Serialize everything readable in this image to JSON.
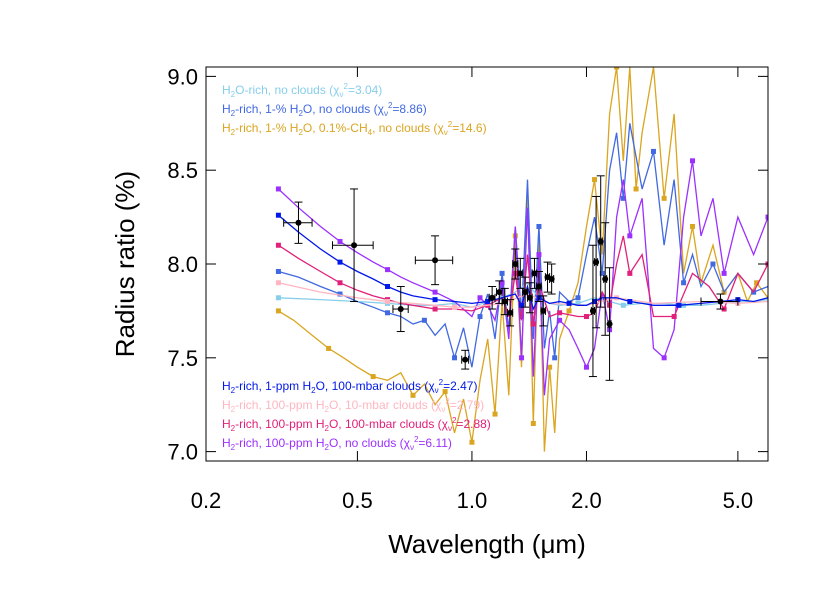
{
  "chart_data": {
    "type": "line",
    "xlabel": "Wavelength (μm)",
    "ylabel": "Radius ratio (%)",
    "xscale": "log",
    "xlim": [
      0.2,
      6.0
    ],
    "ylim": [
      6.95,
      9.05
    ],
    "xticks": [
      {
        "value": 0.2,
        "label": "0.2"
      },
      {
        "value": 0.5,
        "label": "0.5"
      },
      {
        "value": 1.0,
        "label": "1.0"
      },
      {
        "value": 2.0,
        "label": "2.0"
      },
      {
        "value": 5.0,
        "label": "5.0"
      }
    ],
    "yticks": [
      {
        "value": 7.0,
        "label": "7.0"
      },
      {
        "value": 7.5,
        "label": "7.5"
      },
      {
        "value": 8.0,
        "label": "8.0"
      },
      {
        "value": 8.5,
        "label": "8.5"
      },
      {
        "value": 9.0,
        "label": "9.0"
      }
    ],
    "grid": false,
    "series": [
      {
        "name": "H2-rich, 1-% H2O, 0.1%-CH4, no clouds",
        "legend": {
          "pre": "H",
          "sub1": "2",
          "mid": "-rich, 1-% H",
          "sub2": "2",
          "mid2": "O, 0.1%-CH",
          "sub3": "4",
          "post": ", no clouds (",
          "chi": "χ",
          "nu": "ν",
          "sup": "2",
          "val": "=14.6)"
        },
        "color": "#DAA520",
        "legend_pos": "top",
        "x": [
          0.31,
          0.34,
          0.38,
          0.42,
          0.46,
          0.5,
          0.55,
          0.6,
          0.65,
          0.7,
          0.75,
          0.8,
          0.85,
          0.9,
          0.95,
          1.0,
          1.05,
          1.1,
          1.15,
          1.2,
          1.25,
          1.3,
          1.35,
          1.4,
          1.45,
          1.5,
          1.55,
          1.6,
          1.65,
          1.7,
          1.8,
          1.9,
          2.0,
          2.1,
          2.2,
          2.3,
          2.4,
          2.5,
          2.6,
          2.7,
          2.8,
          3.0,
          3.2,
          3.4,
          3.6,
          3.8,
          4.0,
          4.3,
          4.6,
          5.0,
          5.3,
          5.6,
          6.0
        ],
        "y": [
          7.75,
          7.7,
          7.62,
          7.55,
          7.5,
          7.45,
          7.4,
          7.38,
          7.42,
          7.3,
          7.36,
          7.25,
          7.32,
          7.1,
          7.28,
          7.05,
          7.38,
          7.6,
          7.2,
          7.8,
          7.3,
          8.15,
          7.45,
          8.4,
          7.15,
          8.2,
          7.0,
          7.45,
          7.1,
          7.6,
          7.75,
          7.9,
          8.2,
          8.45,
          8.05,
          8.8,
          9.05,
          8.55,
          9.05,
          8.4,
          8.7,
          9.05,
          8.35,
          8.8,
          7.95,
          8.2,
          7.9,
          8.1,
          7.85,
          7.95,
          7.8,
          7.9,
          7.82
        ]
      },
      {
        "name": "H2-rich, 1-% H2O, no clouds",
        "legend": {
          "pre": "H",
          "sub1": "2",
          "mid": "-rich, 1-% H",
          "sub2": "2",
          "mid2": "O, no clouds (",
          "sub3": "",
          "post": "",
          "chi": "χ",
          "nu": "ν",
          "sup": "2",
          "val": "=8.86)"
        },
        "color": "#4169E1",
        "legend_pos": "top",
        "x": [
          0.31,
          0.35,
          0.4,
          0.45,
          0.5,
          0.55,
          0.6,
          0.65,
          0.7,
          0.75,
          0.8,
          0.85,
          0.9,
          0.95,
          1.0,
          1.05,
          1.1,
          1.15,
          1.2,
          1.25,
          1.3,
          1.35,
          1.4,
          1.45,
          1.5,
          1.55,
          1.6,
          1.65,
          1.7,
          1.8,
          1.9,
          2.0,
          2.1,
          2.2,
          2.3,
          2.4,
          2.5,
          2.6,
          2.8,
          3.0,
          3.2,
          3.4,
          3.6,
          3.8,
          4.0,
          4.3,
          4.6,
          5.0,
          5.5,
          6.0
        ],
        "y": [
          7.96,
          7.93,
          7.88,
          7.84,
          7.8,
          7.77,
          7.74,
          7.72,
          7.68,
          7.7,
          7.62,
          7.68,
          7.5,
          7.66,
          7.45,
          7.72,
          7.84,
          7.6,
          7.95,
          7.65,
          8.2,
          7.72,
          8.45,
          7.6,
          8.2,
          7.55,
          7.75,
          7.5,
          7.85,
          7.8,
          7.82,
          8.05,
          8.25,
          7.95,
          8.5,
          8.7,
          8.35,
          8.75,
          8.4,
          8.6,
          8.1,
          8.45,
          7.9,
          8.05,
          7.88,
          8.0,
          7.85,
          7.95,
          7.85,
          7.88
        ]
      },
      {
        "name": "H2O-rich, no clouds",
        "legend": {
          "pre": "H",
          "sub1": "2",
          "mid": "O-rich, no clouds (",
          "sub2": "",
          "mid2": "",
          "sub3": "",
          "post": "",
          "chi": "χ",
          "nu": "ν",
          "sup": "2",
          "val": "=3.04)"
        },
        "color": "#87CEEB",
        "legend_pos": "top",
        "x": [
          0.31,
          0.4,
          0.5,
          0.6,
          0.7,
          0.8,
          0.9,
          1.0,
          1.1,
          1.2,
          1.3,
          1.4,
          1.5,
          1.6,
          1.7,
          1.9,
          2.1,
          2.3,
          2.5,
          2.8,
          3.2,
          3.6,
          4.0,
          4.5,
          5.0,
          5.5,
          6.0
        ],
        "y": [
          7.82,
          7.81,
          7.8,
          7.79,
          7.78,
          7.78,
          7.79,
          7.77,
          7.8,
          7.82,
          7.85,
          7.9,
          7.82,
          7.79,
          7.78,
          7.79,
          7.82,
          7.8,
          7.78,
          7.79,
          7.79,
          7.78,
          7.78,
          7.79,
          7.8,
          7.8,
          7.81
        ]
      },
      {
        "name": "H2-rich, 100-ppm H2O, no clouds",
        "legend": {
          "pre": "H",
          "sub1": "2",
          "mid": "-rich, 100-ppm H",
          "sub2": "2",
          "mid2": "O, no clouds (",
          "sub3": "",
          "post": "",
          "chi": "χ",
          "nu": "ν",
          "sup": "2",
          "val": "=6.11)"
        },
        "color": "#9B30FF",
        "legend_pos": "bottom",
        "x": [
          0.31,
          0.35,
          0.4,
          0.45,
          0.5,
          0.55,
          0.6,
          0.65,
          0.7,
          0.8,
          0.9,
          1.0,
          1.05,
          1.1,
          1.15,
          1.2,
          1.25,
          1.3,
          1.35,
          1.4,
          1.45,
          1.5,
          1.55,
          1.6,
          1.7,
          1.8,
          1.9,
          2.0,
          2.1,
          2.2,
          2.3,
          2.4,
          2.5,
          2.6,
          2.8,
          3.0,
          3.2,
          3.4,
          3.6,
          3.8,
          4.0,
          4.3,
          4.6,
          5.0,
          5.5,
          6.0
        ],
        "y": [
          8.4,
          8.3,
          8.2,
          8.12,
          8.06,
          8.01,
          7.97,
          7.93,
          7.9,
          7.85,
          7.8,
          7.72,
          7.82,
          7.78,
          7.7,
          7.9,
          7.6,
          8.2,
          7.5,
          8.3,
          7.4,
          8.05,
          7.3,
          7.6,
          7.7,
          7.65,
          7.55,
          7.45,
          7.55,
          7.85,
          7.65,
          8.25,
          8.45,
          8.15,
          8.35,
          7.55,
          7.5,
          7.65,
          8.25,
          8.55,
          8.15,
          8.35,
          7.95,
          8.25,
          8.05,
          8.25
        ]
      },
      {
        "name": "H2-rich, 100-ppm H2O, 100-mbar clouds",
        "legend": {
          "pre": "H",
          "sub1": "2",
          "mid": "-rich, 100-ppm H",
          "sub2": "2",
          "mid2": "O, 100-mbar clouds (",
          "sub3": "",
          "post": "",
          "chi": "χ",
          "nu": "ν",
          "sup": "2",
          "val": "=2.88)"
        },
        "color": "#E0207A",
        "legend_pos": "bottom",
        "x": [
          0.31,
          0.35,
          0.4,
          0.45,
          0.5,
          0.55,
          0.6,
          0.65,
          0.7,
          0.8,
          0.9,
          1.0,
          1.1,
          1.2,
          1.25,
          1.3,
          1.35,
          1.4,
          1.45,
          1.5,
          1.6,
          1.7,
          1.8,
          1.9,
          2.0,
          2.1,
          2.2,
          2.3,
          2.4,
          2.5,
          2.6,
          2.8,
          3.0,
          3.4,
          3.8,
          4.2,
          4.6,
          5.0,
          5.5,
          6.0
        ],
        "y": [
          8.1,
          8.03,
          7.96,
          7.9,
          7.86,
          7.83,
          7.81,
          7.79,
          7.78,
          7.76,
          7.76,
          7.75,
          7.78,
          7.82,
          7.72,
          7.95,
          7.7,
          8.05,
          7.68,
          7.9,
          7.72,
          7.74,
          7.73,
          7.72,
          7.72,
          7.74,
          7.85,
          7.78,
          8.0,
          8.15,
          7.95,
          8.05,
          7.72,
          7.72,
          7.95,
          7.88,
          7.76,
          7.95,
          7.85,
          8.0
        ]
      },
      {
        "name": "H2-rich, 100-ppm H2O, 10-mbar clouds",
        "legend": {
          "pre": "H",
          "sub1": "2",
          "mid": "-rich, 100-ppm H",
          "sub2": "2",
          "mid2": "O, 10-mbar clouds (",
          "sub3": "",
          "post": "",
          "chi": "χ",
          "nu": "ν",
          "sup": "2",
          "val": "=2.79)"
        },
        "color": "#FFB6C1",
        "legend_pos": "bottom",
        "x": [
          0.31,
          0.4,
          0.5,
          0.6,
          0.7,
          0.8,
          0.9,
          1.0,
          1.2,
          1.4,
          1.6,
          2.0,
          2.4,
          3.0,
          4.0,
          5.0,
          6.0
        ],
        "y": [
          7.9,
          7.85,
          7.82,
          7.8,
          7.79,
          7.78,
          7.77,
          7.77,
          7.79,
          7.84,
          7.79,
          7.78,
          7.82,
          7.79,
          7.8,
          7.79,
          7.8
        ]
      },
      {
        "name": "H2-rich, 1-ppm H2O, 100-mbar clouds",
        "legend": {
          "pre": "H",
          "sub1": "2",
          "mid": "-rich, 1-ppm H",
          "sub2": "2",
          "mid2": "O, 100-mbar clouds (",
          "sub3": "",
          "post": "",
          "chi": "χ",
          "nu": "ν",
          "sup": "2",
          "val": "=2.47)"
        },
        "color": "#0018E8",
        "legend_pos": "bottom",
        "x": [
          0.31,
          0.35,
          0.4,
          0.45,
          0.5,
          0.55,
          0.6,
          0.65,
          0.7,
          0.8,
          0.9,
          1.0,
          1.1,
          1.2,
          1.3,
          1.35,
          1.4,
          1.45,
          1.5,
          1.6,
          1.7,
          1.8,
          1.9,
          2.0,
          2.1,
          2.2,
          2.4,
          2.6,
          2.8,
          3.0,
          3.5,
          4.0,
          4.5,
          5.0,
          5.5,
          6.0
        ],
        "y": [
          8.26,
          8.17,
          8.08,
          8.01,
          7.96,
          7.92,
          7.88,
          7.85,
          7.83,
          7.81,
          7.8,
          7.79,
          7.8,
          7.82,
          7.84,
          7.78,
          7.88,
          7.76,
          7.82,
          7.79,
          7.8,
          7.79,
          7.78,
          7.78,
          7.8,
          7.82,
          7.82,
          7.8,
          7.79,
          7.78,
          7.78,
          7.79,
          7.8,
          7.81,
          7.8,
          7.82
        ]
      }
    ],
    "observations": {
      "color": "#000000",
      "points": [
        {
          "x": 0.35,
          "y": 8.22,
          "xerr": 0.03,
          "yerr": 0.11
        },
        {
          "x": 0.49,
          "y": 8.1,
          "xerr": 0.06,
          "yerr": 0.3
        },
        {
          "x": 0.65,
          "y": 7.76,
          "xerr": 0.03,
          "yerr": 0.12
        },
        {
          "x": 0.8,
          "y": 8.02,
          "xerr": 0.09,
          "yerr": 0.13
        },
        {
          "x": 0.96,
          "y": 7.49,
          "xerr": 0.02,
          "yerr": 0.05
        },
        {
          "x": 1.13,
          "y": 7.82,
          "xerr": 0.02,
          "yerr": 0.06
        },
        {
          "x": 1.18,
          "y": 7.85,
          "xerr": 0.02,
          "yerr": 0.06
        },
        {
          "x": 1.22,
          "y": 7.8,
          "xerr": 0.02,
          "yerr": 0.07
        },
        {
          "x": 1.26,
          "y": 7.74,
          "xerr": 0.02,
          "yerr": 0.07
        },
        {
          "x": 1.3,
          "y": 8.0,
          "xerr": 0.02,
          "yerr": 0.08
        },
        {
          "x": 1.34,
          "y": 7.95,
          "xerr": 0.02,
          "yerr": 0.08
        },
        {
          "x": 1.38,
          "y": 7.85,
          "xerr": 0.02,
          "yerr": 0.08
        },
        {
          "x": 1.42,
          "y": 7.82,
          "xerr": 0.02,
          "yerr": 0.08
        },
        {
          "x": 1.46,
          "y": 7.95,
          "xerr": 0.02,
          "yerr": 0.08
        },
        {
          "x": 1.5,
          "y": 7.88,
          "xerr": 0.02,
          "yerr": 0.08
        },
        {
          "x": 1.54,
          "y": 7.75,
          "xerr": 0.02,
          "yerr": 0.08
        },
        {
          "x": 1.58,
          "y": 7.93,
          "xerr": 0.02,
          "yerr": 0.08
        },
        {
          "x": 1.62,
          "y": 7.92,
          "xerr": 0.02,
          "yerr": 0.08
        },
        {
          "x": 2.08,
          "y": 7.75,
          "xerr": 0.02,
          "yerr": 0.35
        },
        {
          "x": 2.12,
          "y": 8.01,
          "xerr": 0.02,
          "yerr": 0.35
        },
        {
          "x": 2.18,
          "y": 8.12,
          "xerr": 0.02,
          "yerr": 0.35
        },
        {
          "x": 2.24,
          "y": 7.92,
          "xerr": 0.02,
          "yerr": 0.3
        },
        {
          "x": 2.3,
          "y": 7.68,
          "xerr": 0.02,
          "yerr": 0.3
        },
        {
          "x": 4.5,
          "y": 7.8,
          "xerr": 0.5,
          "yerr": 0.04
        }
      ]
    }
  }
}
